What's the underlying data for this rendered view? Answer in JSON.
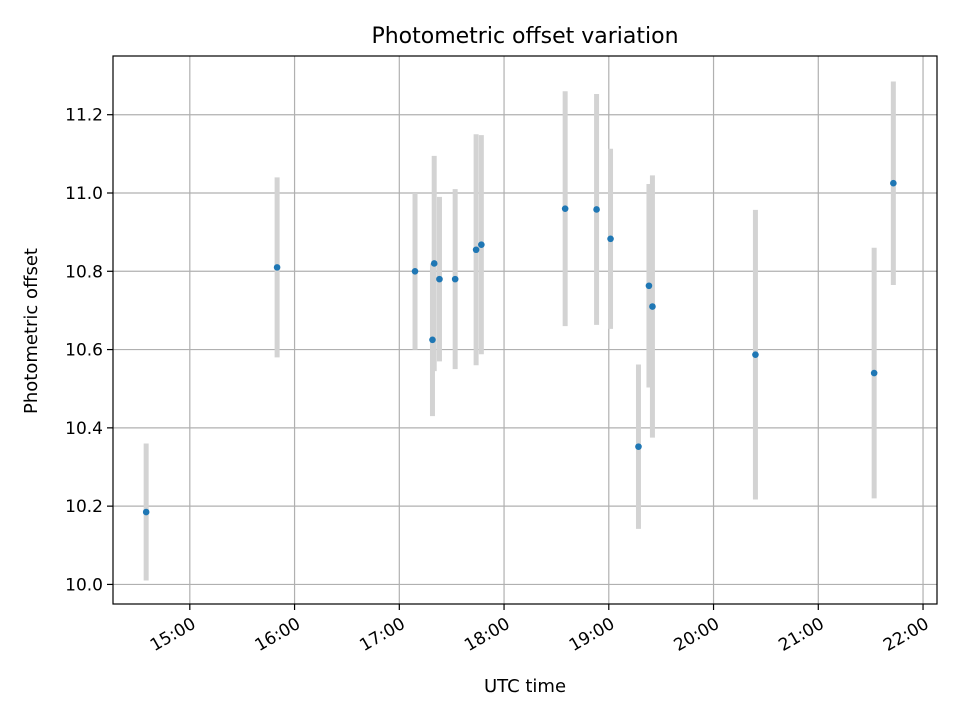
{
  "chart_data": {
    "type": "scatter",
    "title": "Photometric offset variation",
    "xlabel": "UTC time",
    "ylabel": "Photometric offset",
    "x_ticks": [
      "15:00",
      "16:00",
      "17:00",
      "18:00",
      "19:00",
      "20:00",
      "21:00",
      "22:00"
    ],
    "y_ticks": [
      "10.0",
      "10.2",
      "10.4",
      "10.6",
      "10.8",
      "11.0",
      "11.2"
    ],
    "xlim": [
      "14:16",
      "22:08"
    ],
    "ylim": [
      9.95,
      11.35
    ],
    "grid": true,
    "series": [
      {
        "point_color": "#1f77b4",
        "errorbar_color": "#d3d3d3",
        "points": [
          {
            "x": "14:35",
            "y": 10.185,
            "err": 0.175
          },
          {
            "x": "15:50",
            "y": 10.81,
            "err": 0.23
          },
          {
            "x": "17:09",
            "y": 10.8,
            "err": 0.2
          },
          {
            "x": "17:19",
            "y": 10.625,
            "err": 0.195
          },
          {
            "x": "17:20",
            "y": 10.82,
            "err": 0.275
          },
          {
            "x": "17:23",
            "y": 10.78,
            "err": 0.21
          },
          {
            "x": "17:32",
            "y": 10.78,
            "err": 0.23
          },
          {
            "x": "17:44",
            "y": 10.855,
            "err": 0.295
          },
          {
            "x": "17:47",
            "y": 10.868,
            "err": 0.28
          },
          {
            "x": "18:35",
            "y": 10.96,
            "err": 0.3
          },
          {
            "x": "18:53",
            "y": 10.958,
            "err": 0.295
          },
          {
            "x": "19:01",
            "y": 10.883,
            "err": 0.23
          },
          {
            "x": "19:17",
            "y": 10.352,
            "err": 0.21
          },
          {
            "x": "19:23",
            "y": 10.763,
            "err": 0.26
          },
          {
            "x": "19:25",
            "y": 10.71,
            "err": 0.335
          },
          {
            "x": "20:24",
            "y": 10.587,
            "err": 0.37
          },
          {
            "x": "21:32",
            "y": 10.54,
            "err": 0.32
          },
          {
            "x": "21:43",
            "y": 11.025,
            "err": 0.26
          }
        ]
      }
    ]
  }
}
